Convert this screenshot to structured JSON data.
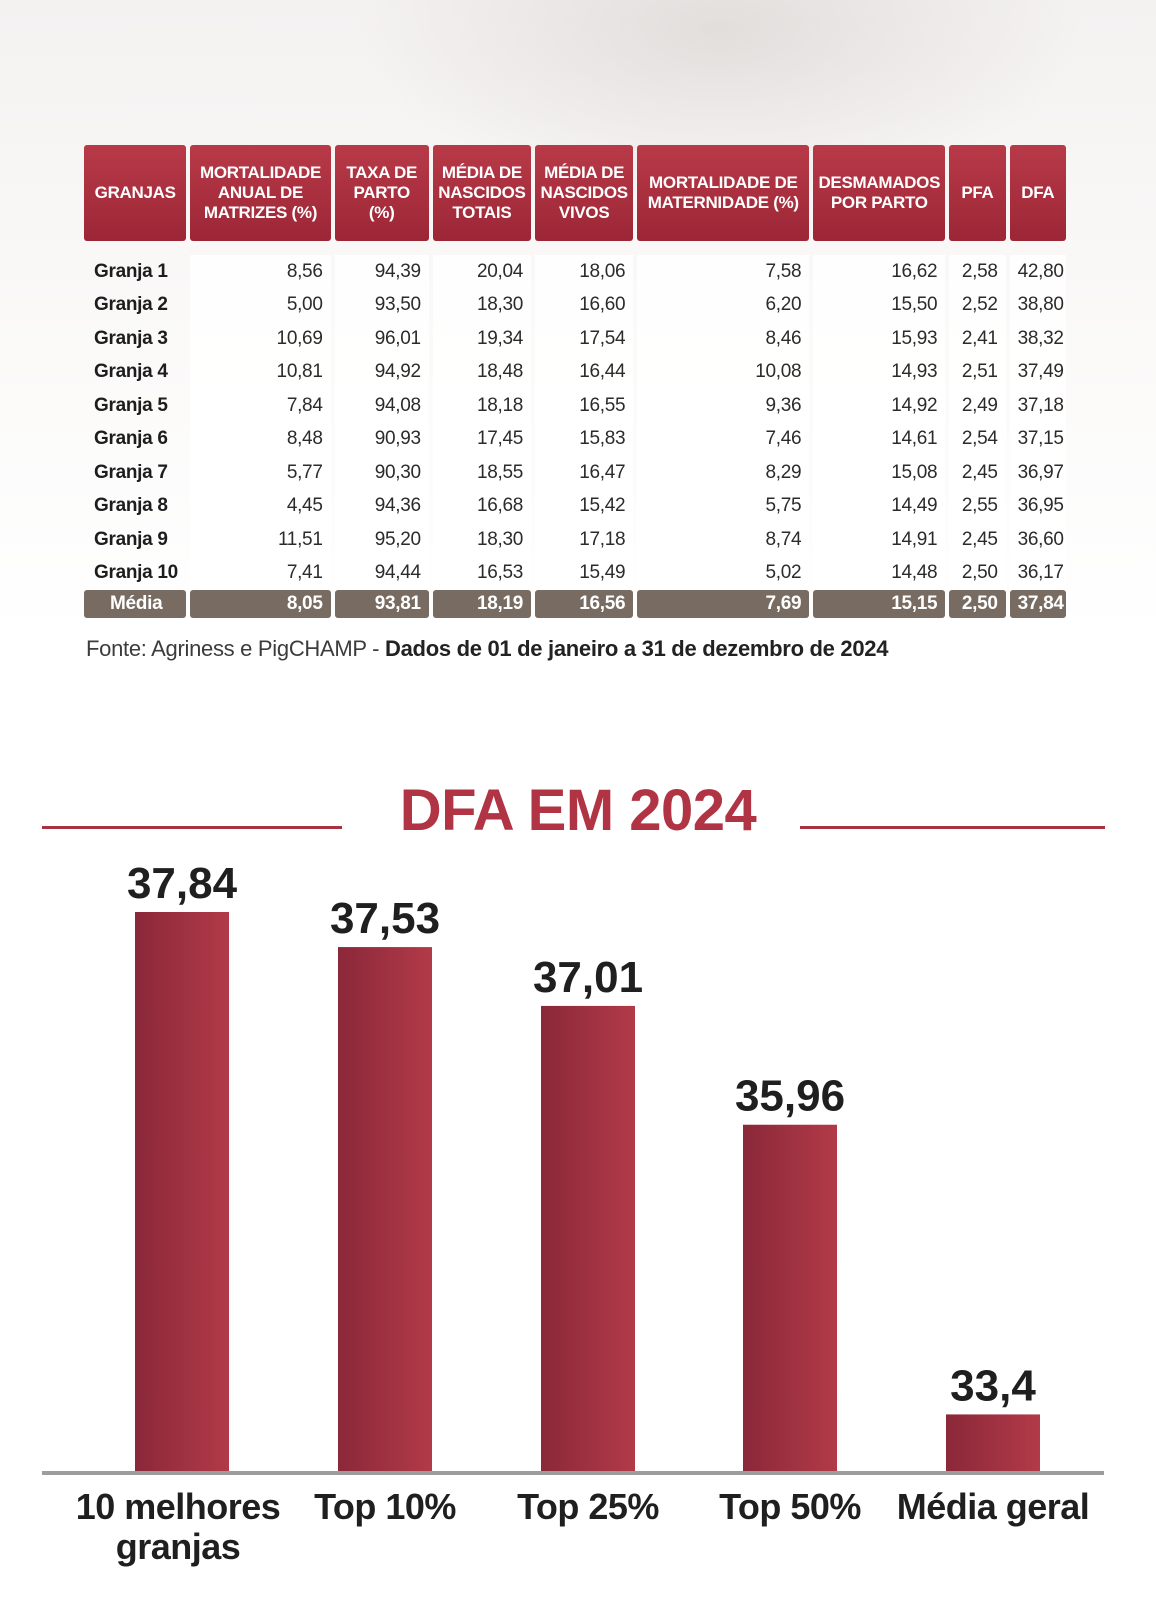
{
  "table": {
    "headers": [
      [
        "GRANJAS"
      ],
      [
        "MORTALIDADE",
        "ANUAL DE",
        "MATRIZES (%)"
      ],
      [
        "TAXA DE",
        "PARTO (%)"
      ],
      [
        "MÉDIA DE",
        "NASCIDOS",
        "TOTAIS"
      ],
      [
        "MÉDIA DE",
        "NASCIDOS",
        "VIVOS"
      ],
      [
        "MORTALIDADE DE",
        "MATERNIDADE (%)"
      ],
      [
        "DESMAMADOS",
        "POR PARTO"
      ],
      [
        "PFA"
      ],
      [
        "DFA"
      ]
    ],
    "rows": [
      [
        "Granja 1",
        "8,56",
        "94,39",
        "20,04",
        "18,06",
        "7,58",
        "16,62",
        "2,58",
        "42,80"
      ],
      [
        "Granja 2",
        "5,00",
        "93,50",
        "18,30",
        "16,60",
        "6,20",
        "15,50",
        "2,52",
        "38,80"
      ],
      [
        "Granja 3",
        "10,69",
        "96,01",
        "19,34",
        "17,54",
        "8,46",
        "15,93",
        "2,41",
        "38,32"
      ],
      [
        "Granja 4",
        "10,81",
        "94,92",
        "18,48",
        "16,44",
        "10,08",
        "14,93",
        "2,51",
        "37,49"
      ],
      [
        "Granja 5",
        "7,84",
        "94,08",
        "18,18",
        "16,55",
        "9,36",
        "14,92",
        "2,49",
        "37,18"
      ],
      [
        "Granja 6",
        "8,48",
        "90,93",
        "17,45",
        "15,83",
        "7,46",
        "14,61",
        "2,54",
        "37,15"
      ],
      [
        "Granja 7",
        "5,77",
        "90,30",
        "18,55",
        "16,47",
        "8,29",
        "15,08",
        "2,45",
        "36,97"
      ],
      [
        "Granja 8",
        "4,45",
        "94,36",
        "16,68",
        "15,42",
        "5,75",
        "14,49",
        "2,55",
        "36,95"
      ],
      [
        "Granja 9",
        "11,51",
        "95,20",
        "18,30",
        "17,18",
        "8,74",
        "14,91",
        "2,45",
        "36,60"
      ],
      [
        "Granja 10",
        "7,41",
        "94,44",
        "16,53",
        "15,49",
        "5,02",
        "14,48",
        "2,50",
        "36,17"
      ]
    ],
    "average": [
      "Média",
      "8,05",
      "93,81",
      "18,19",
      "16,56",
      "7,69",
      "15,15",
      "2,50",
      "37,84"
    ]
  },
  "source": {
    "prefix": "Fonte: Agriness e PigCHAMP - ",
    "bold": "Dados de 01 de janeiro a 31 de dezembro de 2024"
  },
  "chart_data": {
    "type": "bar",
    "title": "DFA EM 2024",
    "categories": [
      [
        "10 melhores",
        "granjas"
      ],
      [
        "Top 10%"
      ],
      [
        "Top 25%"
      ],
      [
        "Top 50%"
      ],
      [
        "Média geral"
      ]
    ],
    "values": [
      37.84,
      37.53,
      37.01,
      35.96,
      33.4
    ],
    "value_labels": [
      "37,84",
      "37,53",
      "37,01",
      "35,96",
      "33,4"
    ],
    "xlabel": "",
    "ylabel": "",
    "ylim": [
      32.9,
      37.84
    ],
    "grid": false,
    "legend": "none",
    "bar_color_dark": "#8a2839",
    "bar_color_light": "#b23a48"
  }
}
